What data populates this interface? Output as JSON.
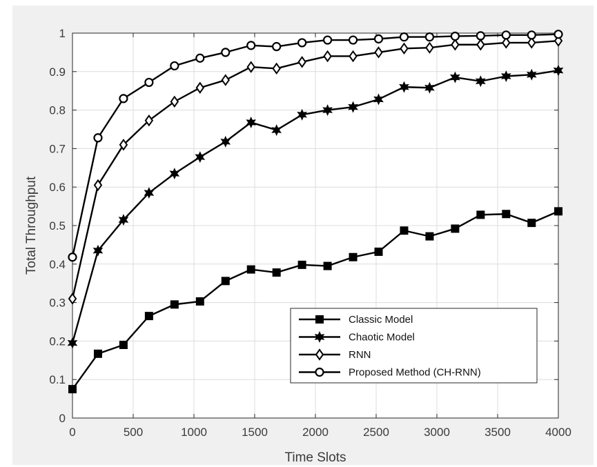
{
  "chart_data": {
    "type": "line",
    "xlabel": "Time Slots",
    "ylabel": "Total Throughput",
    "xlim": [
      0,
      4000
    ],
    "ylim": [
      0,
      1
    ],
    "xticks": [
      0,
      500,
      1000,
      1500,
      2000,
      2500,
      3000,
      3500,
      4000
    ],
    "yticks": [
      0,
      0.1,
      0.2,
      0.3,
      0.4,
      0.5,
      0.6,
      0.7,
      0.8,
      0.9,
      1
    ],
    "xtick_labels": [
      "0",
      "500",
      "1000",
      "1500",
      "2000",
      "2500",
      "3000",
      "3500",
      "4000"
    ],
    "ytick_labels": [
      "0",
      "0.1",
      "0.2",
      "0.3",
      "0.4",
      "0.5",
      "0.6",
      "0.7",
      "0.8",
      "0.9",
      "1"
    ],
    "grid": true,
    "legend_position": "bottom-right",
    "x": [
      0,
      210,
      420,
      630,
      840,
      1050,
      1260,
      1470,
      1680,
      1890,
      2100,
      2310,
      2520,
      2730,
      2940,
      3150,
      3360,
      3570,
      3780,
      4000
    ],
    "series": [
      {
        "name": "Classic Model",
        "marker": "filled-square",
        "values": [
          0.075,
          0.167,
          0.19,
          0.265,
          0.295,
          0.303,
          0.356,
          0.386,
          0.378,
          0.398,
          0.395,
          0.418,
          0.432,
          0.487,
          0.472,
          0.492,
          0.528,
          0.53,
          0.507,
          0.537
        ]
      },
      {
        "name": "Chaotic Model",
        "marker": "hexagram",
        "values": [
          0.195,
          0.435,
          0.515,
          0.585,
          0.635,
          0.678,
          0.718,
          0.768,
          0.748,
          0.788,
          0.8,
          0.808,
          0.828,
          0.86,
          0.858,
          0.885,
          0.875,
          0.888,
          0.892,
          0.903
        ]
      },
      {
        "name": "RNN",
        "marker": "diamond",
        "values": [
          0.31,
          0.605,
          0.71,
          0.773,
          0.822,
          0.858,
          0.878,
          0.912,
          0.908,
          0.925,
          0.94,
          0.94,
          0.95,
          0.96,
          0.962,
          0.97,
          0.97,
          0.975,
          0.975,
          0.98
        ]
      },
      {
        "name": "Proposed Method (CH-RNN)",
        "marker": "circle",
        "values": [
          0.418,
          0.728,
          0.83,
          0.872,
          0.915,
          0.935,
          0.95,
          0.968,
          0.965,
          0.975,
          0.982,
          0.982,
          0.985,
          0.99,
          0.99,
          0.992,
          0.993,
          0.995,
          0.995,
          0.997
        ]
      }
    ]
  }
}
